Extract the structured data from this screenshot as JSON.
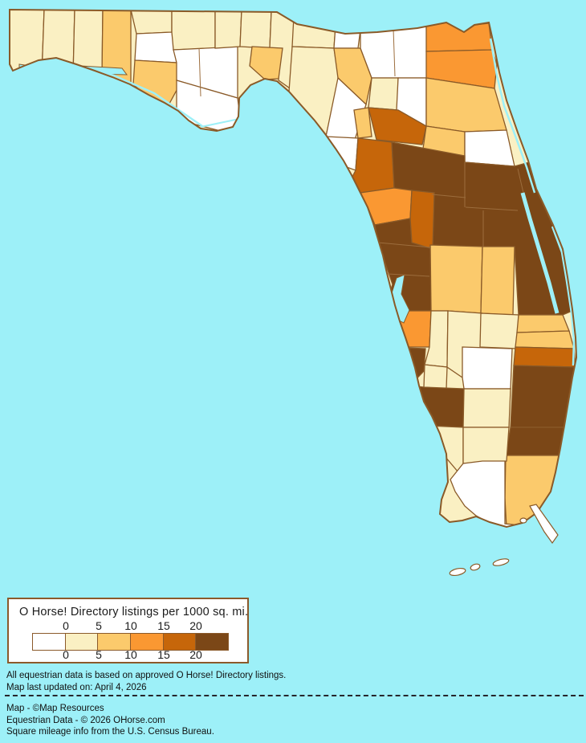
{
  "map": {
    "sea_color": "#9df0f8",
    "border_color": "#8a5a28",
    "inner_line_color": "#9c6d3d",
    "palette": {
      "b0": "#ffffff",
      "b1": "#faf0c3",
      "b2": "#fbca6c",
      "b3": "#fa9832",
      "b4": "#c6660a",
      "b5": "#7b4717"
    },
    "region_fills": {
      "escambia": "b1",
      "santa-rosa": "b1",
      "okaloosa": "b1",
      "walton": "b2",
      "holmes": "b1",
      "washington": "b0",
      "bay": "b2",
      "jackson": "b1",
      "calhoun-liberty": "b0",
      "gulf-franklin": "b0",
      "gadsden": "b1",
      "leon": "b1",
      "wakulla": "b2",
      "jefferson": "b1",
      "madison": "b1",
      "taylor": "b1",
      "hamilton": "b0",
      "suwannee": "b2",
      "lafayette": "b0",
      "columbia-baker": "b0",
      "union-bradford": "b1",
      "nassau": "b3",
      "duval": "b3",
      "clay": "b0",
      "st-johns": "b2",
      "putnam": "b2",
      "flagler": "b0",
      "alachua": "b4",
      "gilchrist": "b2",
      "dixie": "b0",
      "levy": "b4",
      "citrus": "b3",
      "sumter": "b4",
      "hernando-pasco-hillsborough-pinellas": "b5",
      "manatee": "b3",
      "sarasota": "b5",
      "hardee": "b1",
      "desoto": "b1",
      "charlotte": "b5",
      "highlands": "b1",
      "glades": "b0",
      "polk": "b2",
      "osceola": "b2",
      "marion-lake-orange-volusia-brevard": "b5",
      "okeechobee": "b1",
      "indian-river": "b2",
      "st-lucie": "b2",
      "martin": "b4",
      "palm-beach": "b5",
      "broward": "b5",
      "miami-dade": "b2",
      "hendry": "b1",
      "lee": "b1",
      "collier-north": "b1",
      "collier-monroe": "b0"
    }
  },
  "legend": {
    "title": "O Horse! Directory listings per 1000 sq. mi.",
    "tick_labels_top": [
      "0",
      "5",
      "10",
      "15",
      "20"
    ],
    "tick_labels_bottom": [
      "0",
      "5",
      "10",
      "15",
      "20"
    ],
    "swatch_colors": [
      "#ffffff",
      "#faf0c3",
      "#fbca6c",
      "#fa9832",
      "#c6660a",
      "#7b4717"
    ]
  },
  "notes": {
    "line1": "All equestrian data is based on approved O Horse! Directory listings.",
    "line2": "Map last updated on: April 4, 2026"
  },
  "credits": {
    "line1": "Map - ©Map Resources",
    "line2": "Equestrian Data - © 2026 OHorse.com",
    "line3": "Square mileage info from the U.S. Census Bureau."
  }
}
